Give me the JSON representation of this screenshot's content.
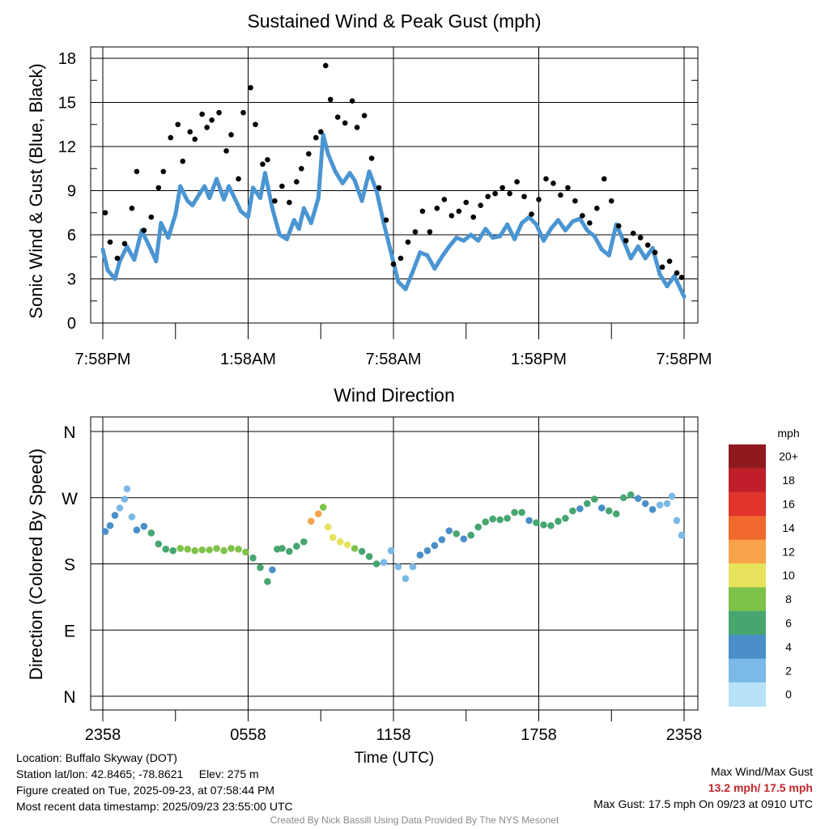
{
  "top_chart": {
    "title": "Sustained Wind & Peak Gust (mph)",
    "ylabel": "Sonic Wind & Gust (Blue, Black)"
  },
  "bottom_chart": {
    "title": "Wind Direction",
    "ylabel": "Direction (Colored By Speed)",
    "xlabel": "Time (UTC)"
  },
  "colorbar": {
    "title": "mph",
    "labels": [
      "20+",
      "18",
      "16",
      "14",
      "12",
      "10",
      "8",
      "6",
      "4",
      "2",
      "0"
    ],
    "colors": [
      "#8f1a1d",
      "#bf1e2a",
      "#e0342c",
      "#f1682e",
      "#f6a34a",
      "#e7e25b",
      "#7ec24a",
      "#47a670",
      "#4a8fc8",
      "#7bb9e6",
      "#b7e2f7"
    ]
  },
  "station": {
    "location": "Location: Buffalo Skyway (DOT)",
    "latlon": "Station lat/lon: 42.8465; -78.8621",
    "elev": "Elev: 275 m",
    "created": "Figure created on Tue, 2025-09-23, at 07:58:44 PM",
    "recent": "Most recent data timestamp: 2025/09/23 23:55:00 UTC"
  },
  "summary": {
    "label": "Max Wind/Max Gust",
    "values": "13.2 mph/ 17.5 mph",
    "max_gust": "Max Gust: 17.5 mph On 09/23 at 0910 UTC",
    "credit": "Created By Nick Bassill Using Data Provided By The NYS Mesonet"
  },
  "chart_data": [
    {
      "type": "line",
      "title": "Sustained Wind & Peak Gust (mph)",
      "ylabel": "Sonic Wind & Gust (Blue, Black)",
      "xlabel": "",
      "ylim": [
        0,
        18
      ],
      "xlim": [
        0,
        24
      ],
      "yticks": [
        0,
        3,
        6,
        9,
        12,
        15,
        18
      ],
      "x_ticks": [
        0,
        6,
        12,
        18,
        24
      ],
      "x_tick_labels": [
        "7:58PM",
        "1:58AM",
        "7:58AM",
        "1:58PM",
        "7:58PM"
      ],
      "x_unit": "hours since 7:58PM",
      "series": [
        {
          "name": "Sustained Wind (blue)",
          "color": "#4a95d2",
          "x": [
            0,
            0.2,
            0.5,
            0.7,
            1.0,
            1.3,
            1.6,
            1.9,
            2.2,
            2.4,
            2.7,
            3.0,
            3.2,
            3.5,
            3.7,
            4.0,
            4.2,
            4.4,
            4.7,
            5.0,
            5.2,
            5.5,
            5.7,
            6.0,
            6.2,
            6.5,
            6.7,
            7.0,
            7.3,
            7.6,
            7.9,
            8.1,
            8.3,
            8.6,
            8.9,
            9.1,
            9.3,
            9.6,
            9.9,
            10.2,
            10.4,
            10.7,
            11.0,
            11.3,
            11.6,
            11.9,
            12.2,
            12.5,
            12.8,
            13.1,
            13.4,
            13.7,
            14.0,
            14.3,
            14.6,
            14.9,
            15.2,
            15.5,
            15.8,
            16.1,
            16.4,
            16.7,
            17.0,
            17.3,
            17.6,
            17.9,
            18.2,
            18.5,
            18.8,
            19.1,
            19.4,
            19.7,
            20.0,
            20.3,
            20.6,
            20.9,
            21.2,
            21.5,
            21.8,
            22.1,
            22.4,
            22.7,
            23.0,
            23.3,
            23.6,
            24.0
          ],
          "values": [
            5.0,
            3.6,
            3.0,
            4.2,
            5.2,
            4.3,
            6.3,
            5.3,
            4.2,
            6.8,
            5.8,
            7.4,
            9.3,
            8.3,
            8.0,
            8.8,
            9.3,
            8.5,
            9.8,
            8.4,
            9.3,
            8.3,
            7.6,
            7.2,
            9.2,
            8.5,
            10.2,
            7.8,
            6.0,
            5.7,
            7.0,
            6.4,
            7.8,
            6.8,
            8.5,
            12.8,
            11.5,
            10.3,
            9.5,
            10.2,
            9.7,
            8.3,
            10.3,
            9.0,
            6.8,
            4.8,
            2.8,
            2.3,
            3.5,
            4.8,
            4.6,
            3.7,
            4.5,
            5.2,
            5.8,
            5.6,
            6.0,
            5.6,
            6.4,
            5.8,
            5.9,
            6.7,
            5.7,
            6.8,
            7.2,
            6.7,
            5.6,
            6.4,
            7.0,
            6.3,
            6.9,
            7.1,
            6.3,
            5.9,
            5.0,
            4.6,
            6.7,
            5.6,
            4.4,
            5.2,
            4.4,
            5.1,
            3.3,
            2.5,
            3.2,
            1.8
          ]
        },
        {
          "name": "Peak Gust (black)",
          "color": "#000000",
          "x": [
            0.1,
            0.3,
            0.6,
            0.9,
            1.2,
            1.4,
            1.7,
            2.0,
            2.3,
            2.5,
            2.8,
            3.1,
            3.3,
            3.6,
            3.8,
            4.1,
            4.3,
            4.5,
            4.8,
            5.1,
            5.3,
            5.6,
            5.8,
            6.1,
            6.3,
            6.6,
            6.8,
            7.1,
            7.4,
            7.7,
            8.0,
            8.2,
            8.5,
            8.8,
            9.0,
            9.2,
            9.4,
            9.7,
            10.0,
            10.3,
            10.5,
            10.8,
            11.1,
            11.4,
            11.7,
            12.0,
            12.3,
            12.6,
            12.9,
            13.2,
            13.5,
            13.8,
            14.1,
            14.4,
            14.7,
            15.0,
            15.3,
            15.6,
            15.9,
            16.2,
            16.5,
            16.8,
            17.1,
            17.4,
            17.7,
            18.0,
            18.3,
            18.6,
            18.9,
            19.2,
            19.5,
            19.8,
            20.1,
            20.4,
            20.7,
            21.0,
            21.3,
            21.6,
            21.9,
            22.2,
            22.5,
            22.8,
            23.1,
            23.4,
            23.7,
            23.9
          ],
          "values": [
            7.5,
            5.5,
            4.4,
            5.4,
            7.8,
            10.3,
            6.3,
            7.2,
            9.2,
            10.3,
            12.6,
            13.5,
            11.0,
            13.0,
            12.5,
            14.2,
            13.3,
            13.8,
            14.3,
            11.7,
            12.8,
            9.8,
            14.3,
            16.0,
            13.5,
            10.8,
            11.1,
            8.3,
            9.3,
            8.2,
            9.6,
            10.5,
            11.5,
            12.6,
            13.0,
            17.5,
            15.2,
            14.0,
            13.6,
            15.1,
            13.3,
            14.1,
            11.2,
            9.2,
            7.0,
            4.0,
            4.4,
            5.5,
            6.2,
            7.6,
            6.2,
            7.8,
            8.4,
            7.3,
            7.6,
            8.2,
            7.2,
            8.0,
            8.6,
            8.8,
            9.2,
            8.8,
            9.6,
            8.6,
            7.4,
            8.4,
            9.8,
            9.5,
            8.7,
            9.2,
            8.3,
            7.3,
            6.8,
            7.8,
            9.8,
            8.3,
            6.6,
            5.6,
            6.1,
            5.8,
            5.3,
            4.8,
            3.8,
            4.2,
            3.4,
            3.1
          ]
        }
      ]
    },
    {
      "type": "scatter",
      "title": "Wind Direction",
      "ylabel": "Direction (Colored By Speed)",
      "xlabel": "Time (UTC)",
      "ylim": [
        0,
        360
      ],
      "xlim": [
        0,
        24
      ],
      "yticks": [
        0,
        90,
        180,
        270,
        360
      ],
      "y_tick_labels": [
        "N",
        "E",
        "S",
        "W",
        "N"
      ],
      "x_ticks": [
        0,
        6,
        12,
        18,
        24
      ],
      "x_tick_labels": [
        "2358",
        "0558",
        "1158",
        "1758",
        "2358"
      ],
      "color_by": "wind speed (mph)",
      "color_bins": [
        0,
        2,
        4,
        6,
        8,
        10,
        12,
        14,
        16,
        18,
        20
      ],
      "x": [
        0.1,
        0.3,
        0.5,
        0.7,
        0.9,
        1.0,
        1.2,
        1.4,
        1.7,
        2.0,
        2.3,
        2.6,
        2.9,
        3.2,
        3.5,
        3.8,
        4.1,
        4.4,
        4.7,
        5.0,
        5.3,
        5.6,
        5.9,
        6.2,
        6.5,
        6.8,
        7.0,
        7.2,
        7.4,
        7.7,
        8.0,
        8.3,
        8.6,
        8.9,
        9.1,
        9.3,
        9.5,
        9.8,
        10.1,
        10.4,
        10.7,
        11.0,
        11.3,
        11.6,
        11.9,
        12.2,
        12.5,
        12.8,
        13.1,
        13.4,
        13.7,
        14.0,
        14.3,
        14.6,
        14.9,
        15.2,
        15.5,
        15.8,
        16.1,
        16.4,
        16.7,
        17.0,
        17.3,
        17.6,
        17.9,
        18.2,
        18.5,
        18.8,
        19.1,
        19.4,
        19.7,
        20.0,
        20.3,
        20.6,
        20.9,
        21.2,
        21.5,
        21.8,
        22.1,
        22.4,
        22.7,
        23.0,
        23.3,
        23.5,
        23.7,
        23.9
      ],
      "values": [
        224,
        232,
        246,
        256,
        268,
        282,
        244,
        226,
        231,
        222,
        207,
        200,
        198,
        201,
        200,
        198,
        199,
        199,
        201,
        198,
        201,
        200,
        196,
        188,
        175,
        156,
        172,
        200,
        201,
        197,
        204,
        210,
        238,
        248,
        257,
        230,
        216,
        210,
        206,
        201,
        197,
        190,
        180,
        182,
        198,
        176,
        160,
        176,
        192,
        198,
        205,
        213,
        225,
        221,
        214,
        219,
        230,
        237,
        241,
        240,
        242,
        250,
        250,
        239,
        236,
        233,
        232,
        238,
        242,
        252,
        255,
        262,
        268,
        256,
        252,
        248,
        270,
        274,
        269,
        262,
        254,
        260,
        262,
        272,
        239,
        219
      ],
      "speeds": [
        4,
        4,
        4,
        3,
        3,
        3,
        3,
        4,
        4,
        6,
        6,
        6,
        7,
        8,
        9,
        9,
        9,
        9,
        9,
        9,
        8,
        9,
        9,
        7,
        6,
        6,
        4,
        6,
        7,
        6,
        6,
        7,
        12,
        13,
        9,
        10,
        10,
        11,
        10,
        9,
        7,
        6,
        6,
        3,
        2,
        2,
        2,
        3,
        4,
        4,
        4,
        5,
        5,
        6,
        5,
        6,
        6,
        6,
        6,
        6,
        7,
        7,
        6,
        5,
        6,
        6,
        6,
        7,
        7,
        6,
        5,
        6,
        6,
        5,
        7,
        6,
        7,
        6,
        5,
        4,
        4,
        3,
        3,
        3,
        2,
        2
      ]
    }
  ]
}
